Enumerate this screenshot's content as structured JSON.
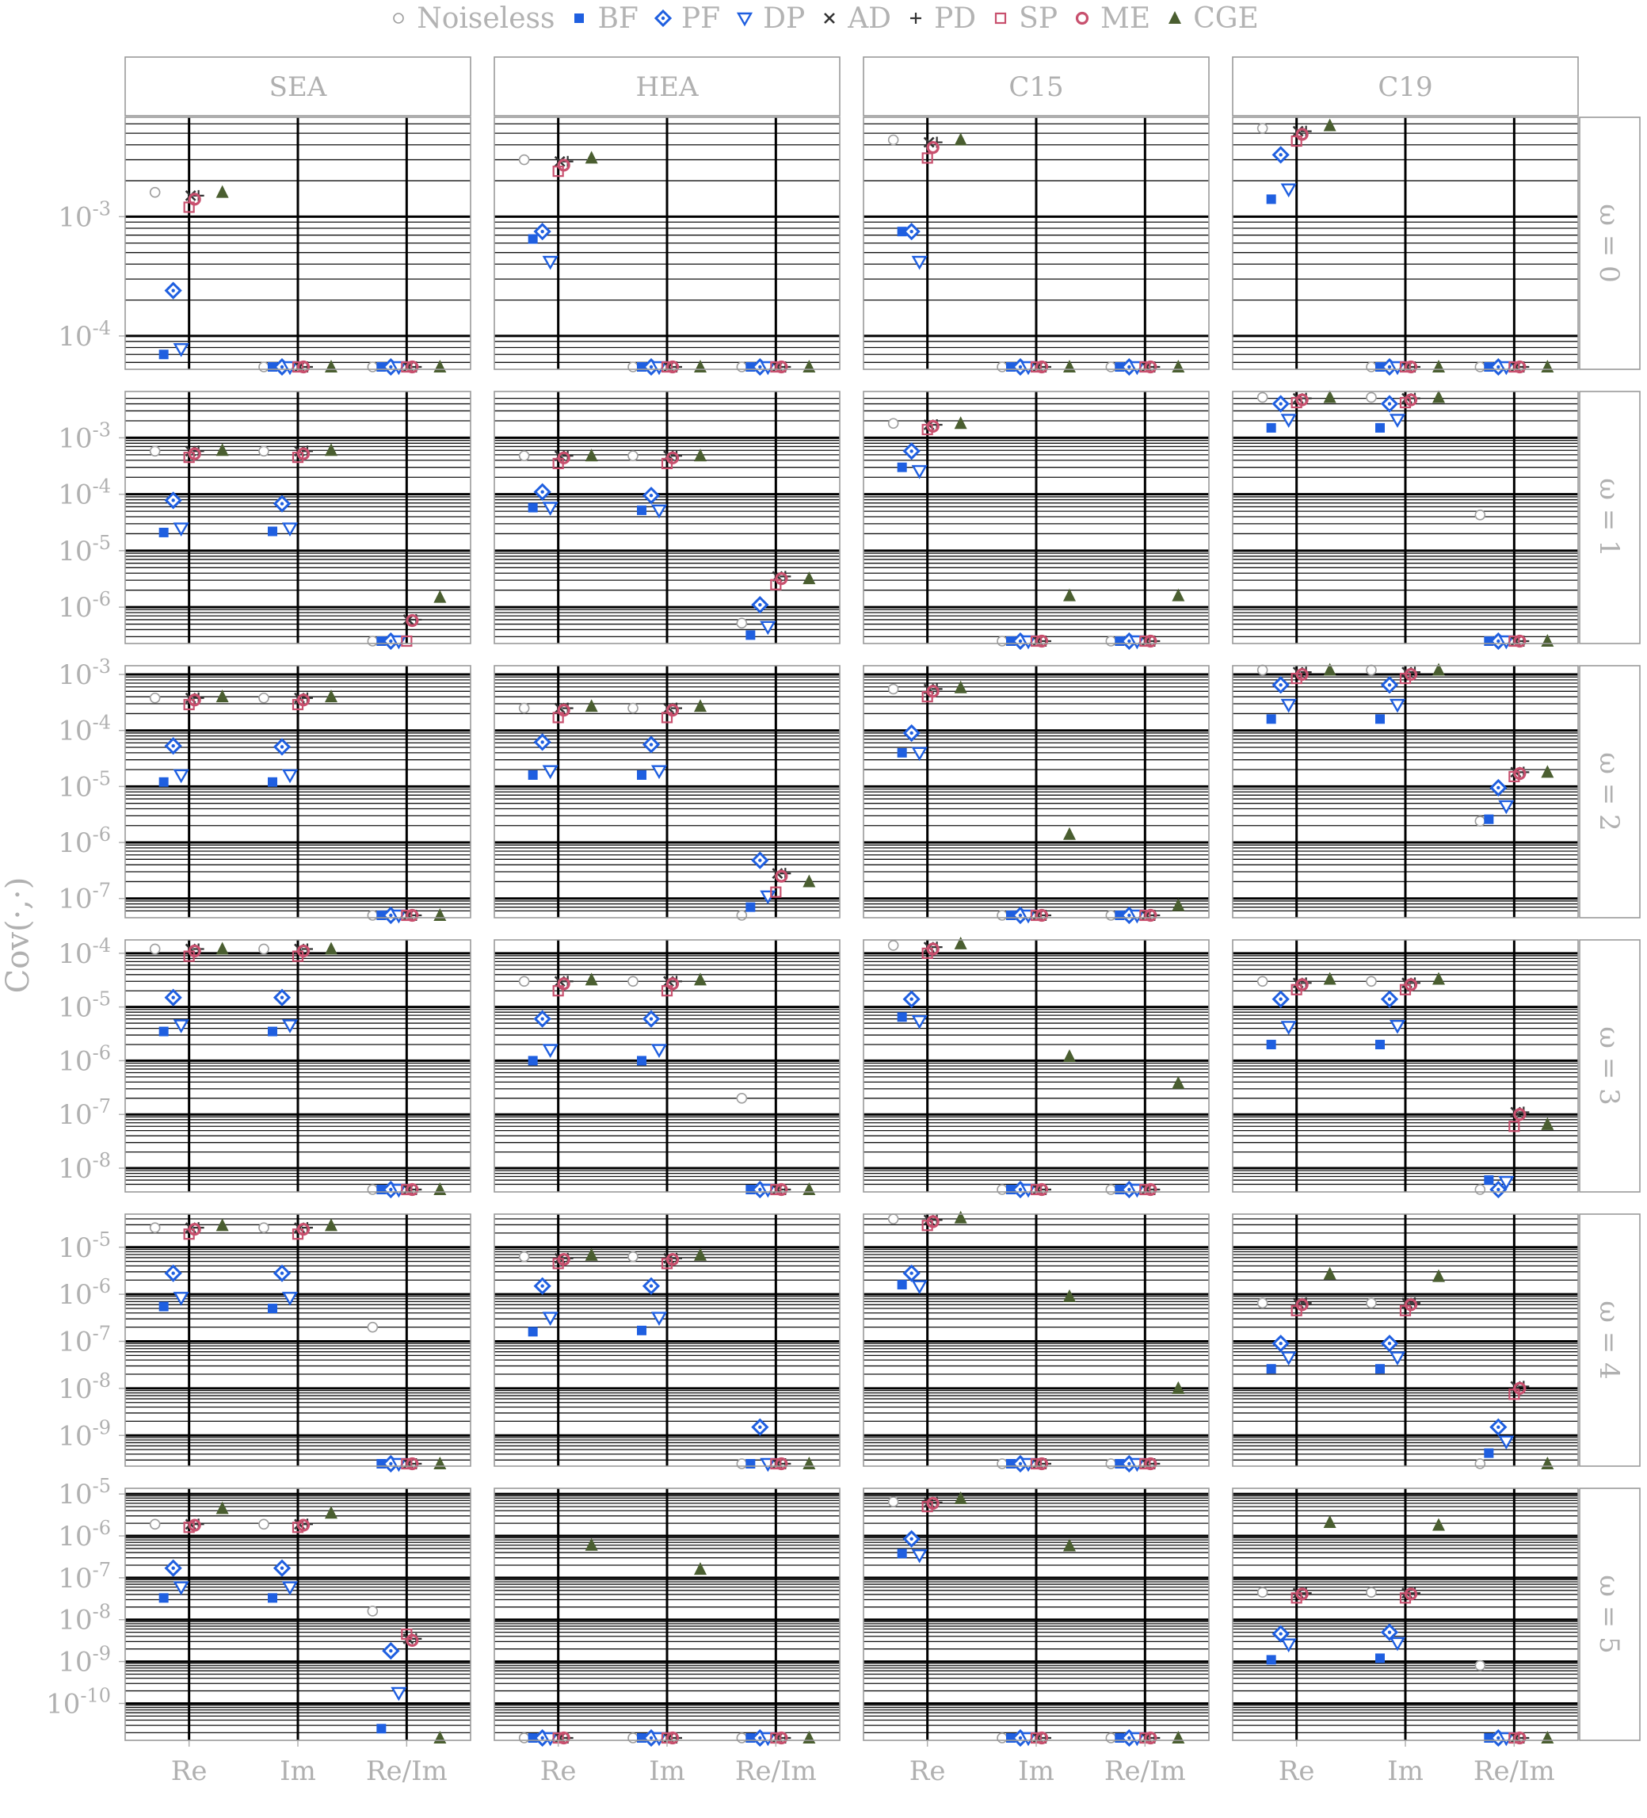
{
  "chart_data": {
    "type": "scatter",
    "yscale": "log",
    "ylabel": "Cov(·,·)",
    "legend_position": "top",
    "grid": true,
    "categories": [
      "Re",
      "Im",
      "Re/Im"
    ],
    "columns": [
      "SEA",
      "HEA",
      "C15",
      "C19"
    ],
    "rows": [
      "ω = 0",
      "ω = 1",
      "ω = 2",
      "ω = 3",
      "ω = 4",
      "ω = 5"
    ],
    "methods": [
      {
        "name": "Noiseless",
        "marker": "circle-open",
        "color": "#9e9e9e"
      },
      {
        "name": "BF",
        "marker": "square-filled",
        "color": "#1f5fe0"
      },
      {
        "name": "PF",
        "marker": "diamond-dot",
        "color": "#1f5fe0"
      },
      {
        "name": "DP",
        "marker": "triangle-down-open",
        "color": "#1f5fe0"
      },
      {
        "name": "AD",
        "marker": "x",
        "color": "#333333"
      },
      {
        "name": "PD",
        "marker": "plus",
        "color": "#333333"
      },
      {
        "name": "SP",
        "marker": "square-open",
        "color": "#c8506e"
      },
      {
        "name": "ME",
        "marker": "circle-dot",
        "color": "#c8506e"
      },
      {
        "name": "CGE",
        "marker": "triangle-up-filled",
        "color": "#4a5e30"
      }
    ],
    "row_ylim": [
      [
        5.5e-05,
        0.0065
      ],
      [
        2.5e-07,
        0.006
      ],
      [
        5e-08,
        0.0013
      ],
      [
        4e-09,
        0.00016
      ],
      [
        2.5e-10,
        4.5e-05
      ],
      [
        1.5e-11,
        1.2e-05
      ]
    ],
    "row_yticks": [
      [
        0.0001,
        0.001
      ],
      [
        1e-06,
        1e-05,
        0.0001,
        0.001
      ],
      [
        1e-07,
        1e-06,
        1e-05,
        0.0001,
        0.001
      ],
      [
        1e-08,
        1e-07,
        1e-06,
        1e-05,
        0.0001
      ],
      [
        1e-09,
        1e-08,
        1e-07,
        1e-06,
        1e-05
      ],
      [
        1e-10,
        1e-09,
        1e-08,
        1e-07,
        1e-06,
        1e-05
      ]
    ],
    "row_ytick_labels": [
      [
        "10-4",
        "10-3"
      ],
      [
        "10-6",
        "10-5",
        "10-4",
        "10-3"
      ],
      [
        "10-7",
        "10-6",
        "10-5",
        "10-4",
        "10-3"
      ],
      [
        "10-8",
        "10-7",
        "10-6",
        "10-5",
        "10-4"
      ],
      [
        "10-9",
        "10-8",
        "10-7",
        "10-6",
        "10-5"
      ],
      [
        "10-10",
        "10-9",
        "10-8",
        "10-7",
        "10-6",
        "10-5"
      ]
    ],
    "panels": [
      [
        {
          "Re": [
            0.0016,
            7e-05,
            0.00024,
            7.8e-05,
            0.0015,
            0.0015,
            0.0012,
            0.0014,
            0.0016
          ],
          "Im": [
            5.5e-05,
            5.5e-05,
            5.5e-05,
            5.5e-05,
            5.5e-05,
            5.5e-05,
            5.5e-05,
            5.5e-05,
            5.5e-05
          ],
          "Re/Im": [
            5.5e-05,
            5.5e-05,
            5.5e-05,
            5.5e-05,
            5.5e-05,
            5.5e-05,
            5.5e-05,
            5.5e-05,
            5.5e-05
          ]
        },
        {
          "Re": [
            0.003,
            0.00065,
            0.00075,
            0.00042,
            0.0029,
            0.0029,
            0.0024,
            0.0027,
            0.0031
          ],
          "Im": [
            5.5e-05,
            5.5e-05,
            5.5e-05,
            5.5e-05,
            5.5e-05,
            5.5e-05,
            5.5e-05,
            5.5e-05,
            5.5e-05
          ],
          "Re/Im": [
            5.5e-05,
            5.5e-05,
            5.5e-05,
            5.5e-05,
            5.5e-05,
            5.5e-05,
            5.5e-05,
            5.5e-05,
            5.5e-05
          ]
        },
        {
          "Re": [
            0.0044,
            0.00075,
            0.00075,
            0.00042,
            0.0042,
            0.0042,
            0.0031,
            0.0038,
            0.0044
          ],
          "Im": [
            5.5e-05,
            5.5e-05,
            5.5e-05,
            5.5e-05,
            5.5e-05,
            5.5e-05,
            5.5e-05,
            5.5e-05,
            5.5e-05
          ],
          "Re/Im": [
            5.5e-05,
            5.5e-05,
            5.5e-05,
            5.5e-05,
            5.5e-05,
            5.5e-05,
            5.5e-05,
            5.5e-05,
            5.5e-05
          ]
        },
        {
          "Re": [
            0.0055,
            0.0014,
            0.0033,
            0.0017,
            0.0052,
            0.0052,
            0.0043,
            0.0049,
            0.0058
          ],
          "Im": [
            5.5e-05,
            5.5e-05,
            5.5e-05,
            5.5e-05,
            5.5e-05,
            5.5e-05,
            5.5e-05,
            5.5e-05,
            5.5e-05
          ],
          "Re/Im": [
            5.5e-05,
            5.5e-05,
            5.5e-05,
            5.5e-05,
            5.5e-05,
            5.5e-05,
            5.5e-05,
            5.5e-05,
            5.5e-05
          ]
        }
      ],
      [
        {
          "Re": [
            0.00058,
            2.1e-05,
            7.8e-05,
            2.5e-05,
            0.00058,
            0.00058,
            0.00045,
            0.00052,
            0.0006
          ],
          "Im": [
            0.00058,
            2.2e-05,
            6.8e-05,
            2.5e-05,
            0.00058,
            0.00058,
            0.00045,
            0.00052,
            0.0006
          ],
          "Re/Im": [
            2.5e-07,
            2.5e-07,
            2.5e-07,
            2.5e-07,
            6e-07,
            6e-07,
            2.5e-07,
            5.8e-07,
            1.5e-06
          ]
        },
        {
          "Re": [
            0.00048,
            5.8e-05,
            0.00011,
            5.8e-05,
            0.00048,
            0.00048,
            0.00035,
            0.00044,
            0.00048
          ],
          "Im": [
            0.00048,
            5.2e-05,
            9.5e-05,
            5.2e-05,
            0.00048,
            0.00048,
            0.00035,
            0.00044,
            0.00048
          ],
          "Re/Im": [
            5.2e-07,
            3.2e-07,
            1.1e-06,
            4.5e-07,
            3.5e-06,
            3.5e-06,
            2.5e-06,
            3.2e-06,
            3.2e-06
          ]
        },
        {
          "Re": [
            0.0018,
            0.0003,
            0.00058,
            0.00026,
            0.0017,
            0.0017,
            0.0014,
            0.0016,
            0.0018
          ],
          "Im": [
            2.5e-07,
            2.5e-07,
            2.5e-07,
            2.5e-07,
            2.5e-07,
            2.5e-07,
            2.5e-07,
            2.5e-07,
            1.6e-06
          ],
          "Re/Im": [
            2.5e-07,
            2.5e-07,
            2.5e-07,
            2.5e-07,
            2.5e-07,
            2.5e-07,
            2.5e-07,
            2.5e-07,
            1.6e-06
          ]
        },
        {
          "Re": [
            0.0052,
            0.0015,
            0.004,
            0.0021,
            0.005,
            0.005,
            0.0042,
            0.0047,
            0.0052
          ],
          "Im": [
            0.0052,
            0.0015,
            0.004,
            0.0021,
            0.005,
            0.005,
            0.0042,
            0.0047,
            0.0052
          ],
          "Re/Im": [
            4.3e-05,
            2.5e-07,
            2.5e-07,
            2.5e-07,
            2.5e-07,
            2.5e-07,
            2.5e-07,
            2.5e-07,
            2.5e-07
          ]
        }
      ],
      [
        {
          "Re": [
            0.00038,
            1.2e-05,
            5.3e-05,
            1.6e-05,
            0.00038,
            0.00038,
            0.00029,
            0.00035,
            0.0004
          ],
          "Im": [
            0.00038,
            1.2e-05,
            5.1e-05,
            1.6e-05,
            0.00038,
            0.00038,
            0.00029,
            0.00035,
            0.0004
          ],
          "Re/Im": [
            5e-08,
            5e-08,
            5e-08,
            5e-08,
            5e-08,
            5e-08,
            5e-08,
            5e-08,
            5e-08
          ]
        },
        {
          "Re": [
            0.00025,
            1.6e-05,
            6.2e-05,
            1.9e-05,
            0.00025,
            0.00025,
            0.00017,
            0.00023,
            0.00027
          ],
          "Im": [
            0.00025,
            1.6e-05,
            5.6e-05,
            1.9e-05,
            0.00025,
            0.00025,
            0.00017,
            0.00023,
            0.00027
          ],
          "Re/Im": [
            5e-08,
            7e-08,
            4.8e-07,
            1.1e-07,
            2.8e-07,
            2.8e-07,
            1.3e-07,
            2.5e-07,
            2e-07
          ]
        },
        {
          "Re": [
            0.00055,
            4e-05,
            9e-05,
            4e-05,
            0.00055,
            0.00055,
            0.0004,
            0.0005,
            0.00058
          ],
          "Im": [
            5e-08,
            5e-08,
            5e-08,
            5e-08,
            5e-08,
            5e-08,
            5e-08,
            5e-08,
            1.4e-06
          ],
          "Re/Im": [
            5e-08,
            5e-08,
            5e-08,
            5e-08,
            5e-08,
            5e-08,
            5e-08,
            5e-08,
            7.5e-08
          ]
        },
        {
          "Re": [
            0.0012,
            0.00016,
            0.00065,
            0.00029,
            0.0011,
            0.0011,
            0.00085,
            0.001,
            0.0012
          ],
          "Im": [
            0.0012,
            0.00016,
            0.00065,
            0.00029,
            0.0011,
            0.0011,
            0.00085,
            0.001,
            0.0012
          ],
          "Re/Im": [
            2.4e-06,
            2.6e-06,
            9.5e-06,
            4.5e-06,
            1.8e-05,
            1.8e-05,
            1.5e-05,
            1.7e-05,
            1.8e-05
          ]
        }
      ],
      [
        {
          "Re": [
            0.00012,
            3.5e-06,
            1.5e-05,
            4.6e-06,
            0.00012,
            0.00012,
            8.8e-05,
            0.00011,
            0.00012
          ],
          "Im": [
            0.00012,
            3.5e-06,
            1.5e-05,
            4.6e-06,
            0.00012,
            0.00012,
            8.8e-05,
            0.00011,
            0.00012
          ],
          "Re/Im": [
            4e-09,
            4e-09,
            4e-09,
            4e-09,
            4e-09,
            4e-09,
            4e-09,
            4e-09,
            4e-09
          ]
        },
        {
          "Re": [
            3e-05,
            1e-06,
            6e-06,
            1.6e-06,
            3e-05,
            3e-05,
            2e-05,
            2.7e-05,
            3.2e-05
          ],
          "Im": [
            3e-05,
            1e-06,
            6e-06,
            1.6e-06,
            3e-05,
            3e-05,
            2e-05,
            2.7e-05,
            3.2e-05
          ],
          "Re/Im": [
            2e-07,
            4e-09,
            4e-09,
            4e-09,
            4e-09,
            4e-09,
            4e-09,
            4e-09,
            4e-09
          ]
        },
        {
          "Re": [
            0.00014,
            6.5e-06,
            1.4e-05,
            5.5e-06,
            0.00013,
            0.00013,
            0.0001,
            0.00012,
            0.00015
          ],
          "Im": [
            4e-09,
            4e-09,
            4e-09,
            4e-09,
            4e-09,
            4e-09,
            4e-09,
            4e-09,
            1.2e-06
          ],
          "Re/Im": [
            4e-09,
            4e-09,
            4e-09,
            4e-09,
            4e-09,
            4e-09,
            4e-09,
            4e-09,
            3.8e-07
          ]
        },
        {
          "Re": [
            3e-05,
            2e-06,
            1.4e-05,
            4.3e-06,
            2.8e-05,
            2.8e-05,
            2.1e-05,
            2.6e-05,
            3.3e-05
          ],
          "Im": [
            3e-05,
            2e-06,
            1.4e-05,
            4.5e-06,
            2.8e-05,
            2.8e-05,
            2.1e-05,
            2.6e-05,
            3.3e-05
          ],
          "Re/Im": [
            4e-09,
            6e-09,
            4e-09,
            5.6e-09,
            1.1e-07,
            1.1e-07,
            6e-08,
            1e-07,
            6.5e-08
          ]
        }
      ],
      [
        {
          "Re": [
            2.6e-05,
            5.5e-07,
            2.8e-06,
            8.5e-07,
            2.6e-05,
            2.6e-05,
            1.9e-05,
            2.4e-05,
            2.9e-05
          ],
          "Im": [
            2.6e-05,
            5e-07,
            2.8e-06,
            8.5e-07,
            2.6e-05,
            2.6e-05,
            1.9e-05,
            2.4e-05,
            2.9e-05
          ],
          "Re/Im": [
            2e-07,
            2.5e-10,
            2.5e-10,
            2.5e-10,
            2.5e-10,
            2.5e-10,
            2.5e-10,
            2.5e-10,
            2.5e-10
          ]
        },
        {
          "Re": [
            6.3e-06,
            1.6e-07,
            1.5e-06,
            3.2e-07,
            5.8e-06,
            5.8e-06,
            4.5e-06,
            5.5e-06,
            6.8e-06
          ],
          "Im": [
            6.3e-06,
            1.7e-07,
            1.5e-06,
            3.2e-07,
            5.8e-06,
            5.8e-06,
            4.5e-06,
            5.5e-06,
            6.8e-06
          ],
          "Re/Im": [
            2.5e-10,
            2.5e-10,
            1.5e-09,
            2.5e-10,
            2.5e-10,
            2.5e-10,
            2.5e-10,
            2.5e-10,
            2.5e-10
          ]
        },
        {
          "Re": [
            4e-05,
            1.6e-06,
            2.8e-06,
            1.5e-06,
            3.8e-05,
            3.8e-05,
            2.9e-05,
            3.5e-05,
            4.2e-05
          ],
          "Im": [
            2.5e-10,
            2.5e-10,
            2.5e-10,
            2.5e-10,
            2.5e-10,
            2.5e-10,
            2.5e-10,
            2.5e-10,
            9e-07
          ],
          "Re/Im": [
            2.5e-10,
            2.5e-10,
            2.5e-10,
            2.5e-10,
            2.5e-10,
            2.5e-10,
            2.5e-10,
            2.5e-10,
            1e-08
          ]
        },
        {
          "Re": [
            6.5e-07,
            2.6e-08,
            9e-08,
            4.6e-08,
            6.5e-07,
            6.5e-07,
            4.5e-07,
            6e-07,
            2.7e-06
          ],
          "Im": [
            6.5e-07,
            2.6e-08,
            9e-08,
            4.6e-08,
            6.5e-07,
            6.5e-07,
            4.5e-07,
            6e-07,
            2.4e-06
          ],
          "Re/Im": [
            2.5e-10,
            4.2e-10,
            1.5e-09,
            7.5e-10,
            1.1e-08,
            1.1e-08,
            7.5e-09,
            1e-08,
            2.5e-10
          ]
        }
      ],
      [
        {
          "Re": [
            1.9e-06,
            3.3e-08,
            1.7e-07,
            6e-08,
            1.9e-06,
            1.9e-06,
            1.6e-06,
            1.8e-06,
            4.5e-06
          ],
          "Im": [
            1.9e-06,
            3.3e-08,
            1.7e-07,
            6e-08,
            1.9e-06,
            1.9e-06,
            1.6e-06,
            1.8e-06,
            3.5e-06
          ],
          "Re/Im": [
            1.6e-08,
            2.5e-11,
            1.8e-09,
            1.8e-10,
            3.5e-09,
            3.5e-09,
            4.5e-09,
            3.2e-09,
            1.5e-11
          ]
        },
        {
          "Re": [
            1.5e-11,
            1.5e-11,
            1.5e-11,
            1.5e-11,
            1.5e-11,
            1.5e-11,
            1.5e-11,
            1.5e-11,
            6e-07
          ],
          "Im": [
            1.5e-11,
            1.5e-11,
            1.5e-11,
            1.5e-11,
            1.5e-11,
            1.5e-11,
            1.5e-11,
            1.5e-11,
            1.6e-07
          ],
          "Re/Im": [
            1.5e-11,
            1.5e-11,
            1.5e-11,
            1.5e-11,
            1.5e-11,
            1.5e-11,
            1.5e-11,
            1.5e-11,
            1.5e-11
          ]
        },
        {
          "Re": [
            6.5e-06,
            3.8e-07,
            8.5e-07,
            3.5e-07,
            6.3e-06,
            6.3e-06,
            5e-06,
            6e-06,
            7.8e-06
          ],
          "Im": [
            1.5e-11,
            1.5e-11,
            1.5e-11,
            1.5e-11,
            1.5e-11,
            1.5e-11,
            1.5e-11,
            1.5e-11,
            5.8e-07
          ],
          "Re/Im": [
            1.5e-11,
            1.5e-11,
            1.5e-11,
            1.5e-11,
            1.5e-11,
            1.5e-11,
            1.5e-11,
            1.5e-11,
            1.5e-11
          ]
        },
        {
          "Re": [
            4.5e-08,
            1.1e-09,
            4.6e-09,
            2.6e-09,
            4.3e-08,
            4.3e-08,
            3.3e-08,
            4.1e-08,
            2.1e-06
          ],
          "Im": [
            4.5e-08,
            1.2e-09,
            5e-09,
            2.8e-09,
            4.3e-08,
            4.3e-08,
            3.3e-08,
            4.1e-08,
            1.8e-06
          ],
          "Re/Im": [
            8e-10,
            1.5e-11,
            1.5e-11,
            1.5e-11,
            1.5e-11,
            1.5e-11,
            1.5e-11,
            1.5e-11,
            1.5e-11
          ]
        }
      ]
    ]
  }
}
